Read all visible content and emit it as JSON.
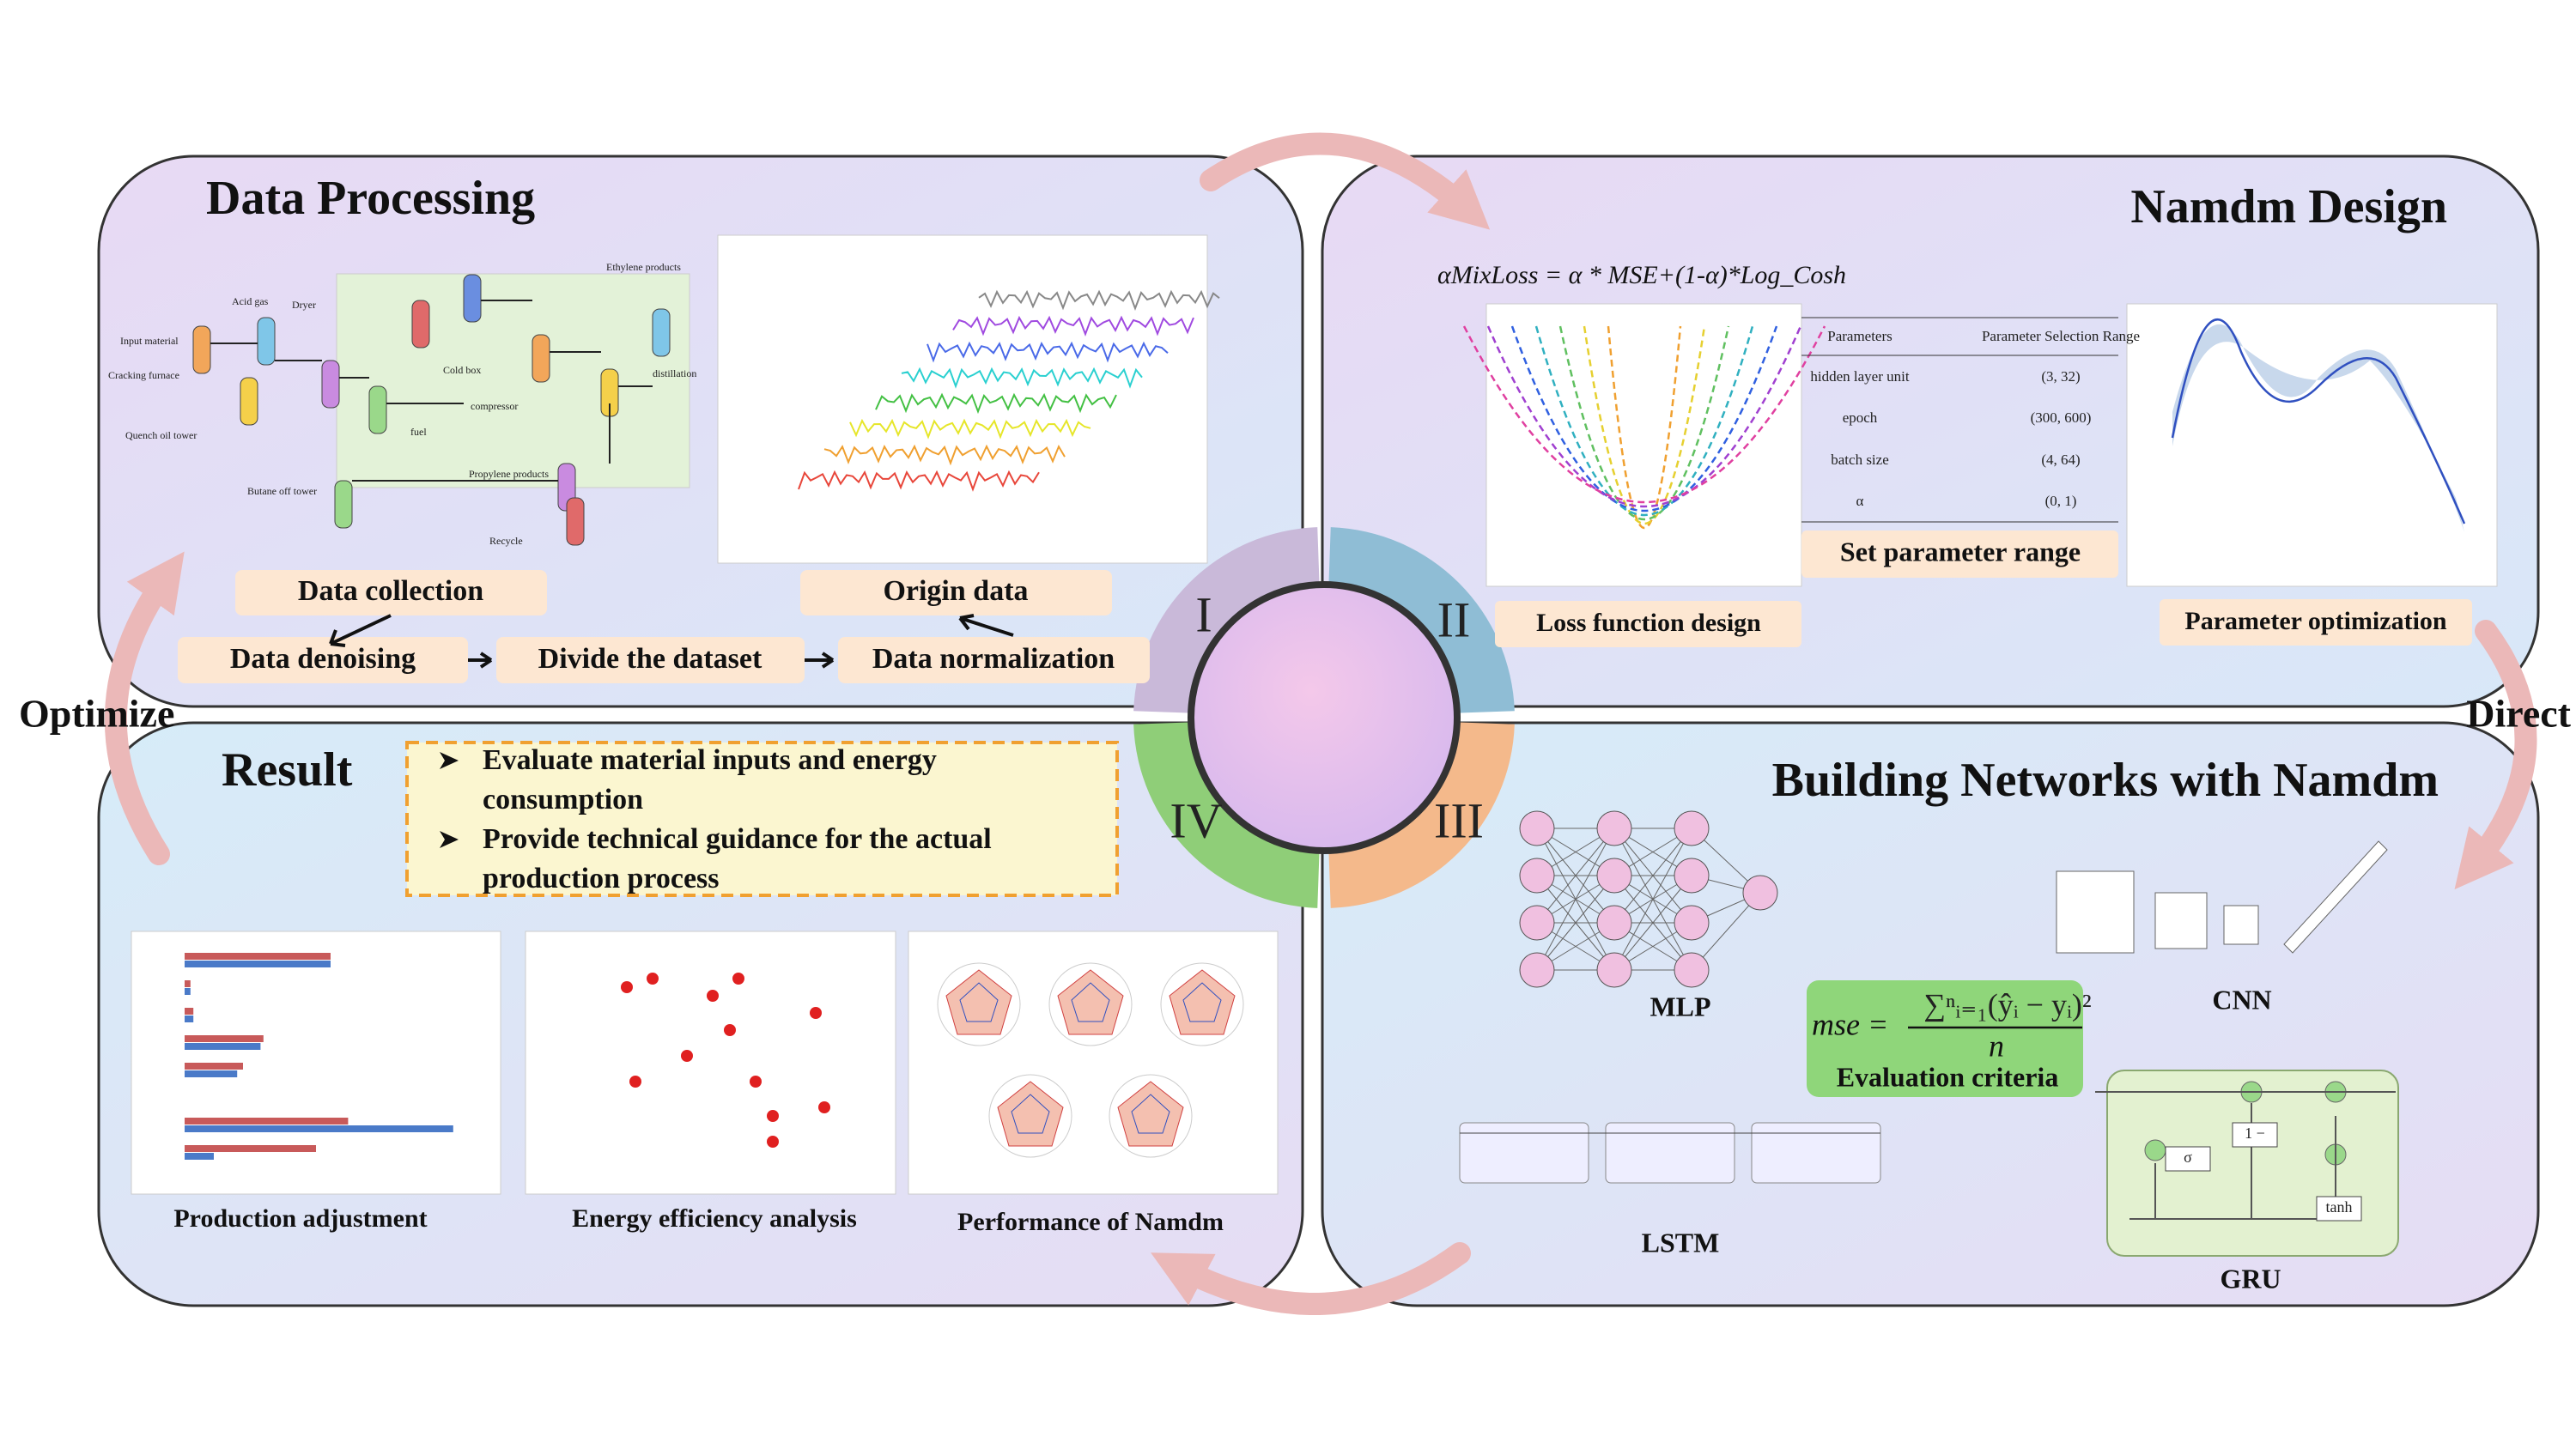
{
  "diagram": {
    "center_numerals": [
      "I",
      "II",
      "III",
      "IV"
    ],
    "side_labels": [
      "Optimize",
      "Direct"
    ],
    "data_processing": {
      "title": "Data Processing",
      "steps": [
        "Data collection",
        "Origin data",
        "Data denoising",
        "Divide the dataset",
        "Data normalization"
      ],
      "flow_labels": [
        "Input material",
        "Cracking furnace",
        "Quench oil tower",
        "Acid gas",
        "Dryer",
        "Cold box",
        "compressor",
        "distillation",
        "Ethylene products",
        "Propylene products",
        "Recycle",
        "fuel",
        "Butane off tower"
      ]
    },
    "namdm_design": {
      "title": "Namdm Design",
      "formula": "αMixLoss = α * MSE+(1-α)*Log_Cosh",
      "table": {
        "header": [
          "Parameters",
          "Parameter Selection Range"
        ],
        "rows": [
          [
            "hidden layer unit",
            "(3, 32)"
          ],
          [
            "epoch",
            "(300, 600)"
          ],
          [
            "batch size",
            "(4, 64)"
          ],
          [
            "α",
            "(0, 1)"
          ]
        ]
      },
      "captions": [
        "Loss function design",
        "Set parameter range",
        "Parameter optimization"
      ]
    },
    "result": {
      "title": "Result",
      "bullets": [
        [
          "Evaluate material inputs and energy",
          "consumption"
        ],
        [
          "Provide technical guidance for the actual",
          "production process"
        ]
      ],
      "captions": [
        "Production adjustment",
        "Energy efficiency analysis",
        "Performance of Namdm"
      ]
    },
    "networks": {
      "title": "Building Networks with Namdm",
      "captions": [
        "MLP",
        "CNN",
        "LSTM",
        "GRU"
      ],
      "evaluation": {
        "lhs": "mse =",
        "numerator": "∑ⁿᵢ₌₁(ŷᵢ − yᵢ)²",
        "denominator": "n",
        "label": "Evaluation criteria"
      },
      "gru_labels": [
        "tanh",
        "σ",
        "1 −"
      ]
    }
  }
}
